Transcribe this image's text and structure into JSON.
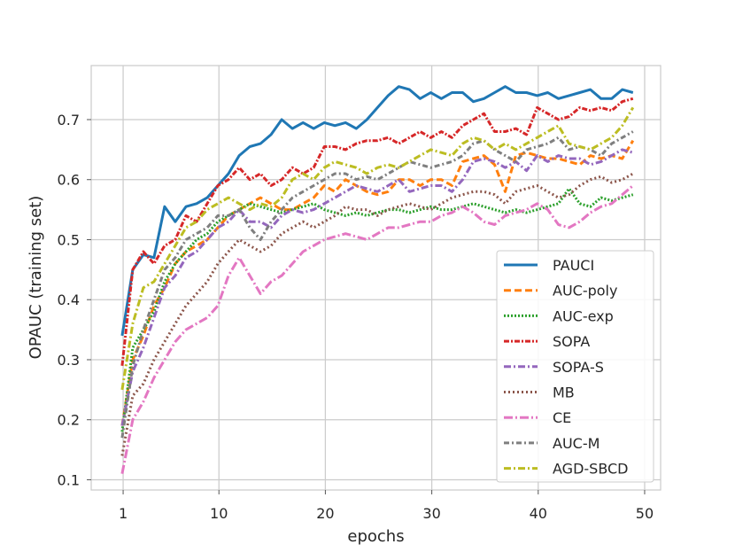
{
  "chart_data": {
    "type": "line",
    "xlabel": "epochs",
    "ylabel": "OPAUC (training set)",
    "xlim": [
      -2,
      51.5
    ],
    "ylim": [
      0.083,
      0.79
    ],
    "xticks": [
      1,
      10,
      20,
      30,
      40,
      50
    ],
    "yticks": [
      0.1,
      0.2,
      0.3,
      0.4,
      0.5,
      0.6,
      0.7
    ],
    "grid": true,
    "legend_position": "lower-right",
    "x": [
      0.9,
      1.9,
      2.9,
      3.9,
      4.9,
      5.9,
      6.9,
      7.9,
      8.9,
      9.9,
      10.9,
      11.9,
      12.9,
      13.9,
      14.9,
      15.9,
      16.9,
      17.9,
      18.9,
      19.9,
      20.9,
      21.9,
      22.9,
      23.9,
      24.9,
      25.9,
      26.9,
      27.9,
      28.9,
      29.9,
      30.9,
      31.9,
      32.9,
      33.9,
      34.9,
      35.9,
      36.9,
      37.9,
      38.9,
      39.9,
      40.9,
      41.9,
      42.9,
      43.9,
      44.9,
      45.9,
      46.9,
      47.9,
      48.9
    ],
    "series": [
      {
        "name": "PAUCI",
        "color": "#1f77b4",
        "dash": "",
        "values": [
          0.34,
          0.45,
          0.475,
          0.47,
          0.555,
          0.53,
          0.555,
          0.56,
          0.57,
          0.59,
          0.61,
          0.64,
          0.655,
          0.66,
          0.675,
          0.7,
          0.685,
          0.695,
          0.685,
          0.695,
          0.69,
          0.695,
          0.685,
          0.7,
          0.72,
          0.74,
          0.755,
          0.75,
          0.735,
          0.745,
          0.735,
          0.745,
          0.745,
          0.73,
          0.735,
          0.745,
          0.755,
          0.745,
          0.745,
          0.74,
          0.745,
          0.735,
          0.74,
          0.745,
          0.75,
          0.735,
          0.735,
          0.75,
          0.745
        ]
      },
      {
        "name": "AUC-poly",
        "color": "#ff7f0e",
        "dash": "8,4",
        "values": [
          0.19,
          0.3,
          0.34,
          0.39,
          0.42,
          0.46,
          0.48,
          0.49,
          0.5,
          0.52,
          0.54,
          0.55,
          0.56,
          0.57,
          0.56,
          0.55,
          0.55,
          0.56,
          0.57,
          0.59,
          0.58,
          0.6,
          0.59,
          0.58,
          0.575,
          0.58,
          0.6,
          0.6,
          0.59,
          0.6,
          0.6,
          0.59,
          0.63,
          0.635,
          0.64,
          0.625,
          0.58,
          0.64,
          0.645,
          0.64,
          0.635,
          0.635,
          0.63,
          0.625,
          0.64,
          0.635,
          0.64,
          0.635,
          0.665
        ]
      },
      {
        "name": "AUC-exp",
        "color": "#2ca02c",
        "dash": "2,2",
        "values": [
          0.18,
          0.32,
          0.35,
          0.38,
          0.43,
          0.46,
          0.48,
          0.5,
          0.51,
          0.53,
          0.54,
          0.55,
          0.56,
          0.555,
          0.55,
          0.545,
          0.55,
          0.555,
          0.56,
          0.55,
          0.545,
          0.54,
          0.545,
          0.54,
          0.545,
          0.55,
          0.55,
          0.545,
          0.55,
          0.555,
          0.55,
          0.55,
          0.555,
          0.56,
          0.555,
          0.55,
          0.545,
          0.55,
          0.545,
          0.55,
          0.555,
          0.56,
          0.585,
          0.56,
          0.555,
          0.57,
          0.565,
          0.57,
          0.575
        ]
      },
      {
        "name": "SOPA",
        "color": "#d62728",
        "dash": "6,2,2,2",
        "values": [
          0.29,
          0.45,
          0.48,
          0.46,
          0.49,
          0.5,
          0.54,
          0.53,
          0.56,
          0.59,
          0.6,
          0.62,
          0.6,
          0.61,
          0.59,
          0.6,
          0.62,
          0.61,
          0.62,
          0.655,
          0.655,
          0.65,
          0.66,
          0.665,
          0.665,
          0.67,
          0.66,
          0.67,
          0.68,
          0.67,
          0.68,
          0.67,
          0.69,
          0.7,
          0.71,
          0.68,
          0.68,
          0.685,
          0.675,
          0.72,
          0.71,
          0.7,
          0.705,
          0.72,
          0.715,
          0.72,
          0.715,
          0.73,
          0.735
        ]
      },
      {
        "name": "SOPA-S",
        "color": "#9467bd",
        "dash": "8,3,2,3",
        "values": [
          0.19,
          0.28,
          0.32,
          0.37,
          0.42,
          0.44,
          0.47,
          0.48,
          0.5,
          0.52,
          0.53,
          0.55,
          0.53,
          0.53,
          0.52,
          0.54,
          0.55,
          0.545,
          0.55,
          0.56,
          0.57,
          0.58,
          0.59,
          0.585,
          0.58,
          0.59,
          0.6,
          0.58,
          0.585,
          0.59,
          0.59,
          0.58,
          0.6,
          0.63,
          0.635,
          0.63,
          0.62,
          0.63,
          0.615,
          0.64,
          0.63,
          0.64,
          0.635,
          0.635,
          0.625,
          0.63,
          0.64,
          0.65,
          0.645
        ]
      },
      {
        "name": "MB",
        "color": "#8c564b",
        "dash": "2,3",
        "values": [
          0.14,
          0.24,
          0.26,
          0.3,
          0.33,
          0.36,
          0.39,
          0.41,
          0.43,
          0.46,
          0.48,
          0.5,
          0.49,
          0.48,
          0.49,
          0.51,
          0.52,
          0.53,
          0.52,
          0.53,
          0.54,
          0.555,
          0.55,
          0.55,
          0.54,
          0.55,
          0.555,
          0.56,
          0.555,
          0.55,
          0.56,
          0.57,
          0.575,
          0.58,
          0.58,
          0.575,
          0.56,
          0.58,
          0.585,
          0.59,
          0.58,
          0.57,
          0.575,
          0.59,
          0.6,
          0.605,
          0.595,
          0.6,
          0.61
        ]
      },
      {
        "name": "CE",
        "color": "#e377c2",
        "dash": "10,3,2,3",
        "values": [
          0.11,
          0.2,
          0.23,
          0.27,
          0.3,
          0.33,
          0.35,
          0.36,
          0.37,
          0.39,
          0.44,
          0.47,
          0.44,
          0.41,
          0.43,
          0.44,
          0.46,
          0.48,
          0.49,
          0.5,
          0.505,
          0.51,
          0.505,
          0.5,
          0.51,
          0.52,
          0.52,
          0.525,
          0.53,
          0.53,
          0.54,
          0.545,
          0.555,
          0.545,
          0.53,
          0.525,
          0.54,
          0.545,
          0.55,
          0.56,
          0.55,
          0.525,
          0.52,
          0.53,
          0.545,
          0.555,
          0.56,
          0.575,
          0.59
        ]
      },
      {
        "name": "AUC-M",
        "color": "#7f7f7f",
        "dash": "6,3,2,3",
        "values": [
          0.17,
          0.29,
          0.35,
          0.4,
          0.45,
          0.47,
          0.5,
          0.51,
          0.52,
          0.54,
          0.54,
          0.55,
          0.52,
          0.5,
          0.53,
          0.55,
          0.57,
          0.58,
          0.59,
          0.6,
          0.61,
          0.61,
          0.6,
          0.605,
          0.6,
          0.61,
          0.62,
          0.63,
          0.625,
          0.62,
          0.625,
          0.63,
          0.64,
          0.66,
          0.665,
          0.65,
          0.64,
          0.63,
          0.65,
          0.655,
          0.66,
          0.67,
          0.65,
          0.655,
          0.65,
          0.64,
          0.66,
          0.67,
          0.68
        ]
      },
      {
        "name": "AGD-SBCD",
        "color": "#bcbd22",
        "dash": "8,3,2,3",
        "values": [
          0.25,
          0.36,
          0.42,
          0.43,
          0.46,
          0.49,
          0.52,
          0.53,
          0.55,
          0.56,
          0.57,
          0.56,
          0.55,
          0.56,
          0.555,
          0.57,
          0.6,
          0.61,
          0.6,
          0.62,
          0.63,
          0.625,
          0.62,
          0.61,
          0.62,
          0.625,
          0.62,
          0.63,
          0.64,
          0.65,
          0.645,
          0.64,
          0.66,
          0.67,
          0.665,
          0.65,
          0.66,
          0.65,
          0.66,
          0.67,
          0.68,
          0.69,
          0.66,
          0.655,
          0.65,
          0.66,
          0.67,
          0.69,
          0.72
        ]
      }
    ]
  }
}
